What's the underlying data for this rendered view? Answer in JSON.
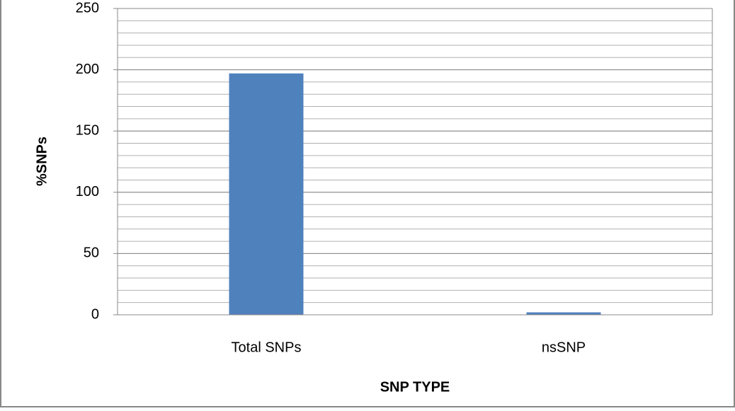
{
  "chart_data": {
    "type": "bar",
    "x_label": "SNP TYPE",
    "y_label": "%SNPs",
    "categories": [
      "Total SNPs",
      "nsSNP"
    ],
    "values": [
      197,
      2
    ],
    "color": "#4f81bd",
    "ylim": [
      0,
      250
    ],
    "yticks": [
      0,
      50,
      100,
      150,
      200,
      250
    ],
    "grid": true,
    "minor_grid_step": 10
  }
}
